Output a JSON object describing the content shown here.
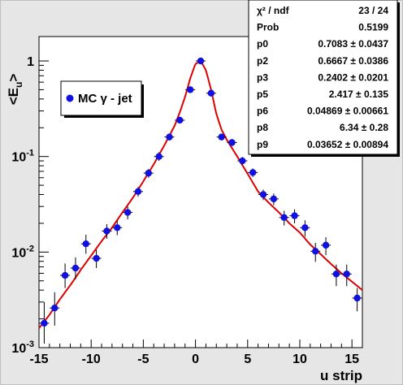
{
  "chart_data": {
    "type": "scatter",
    "xlabel": "u strip",
    "ylabel": "<E_u>",
    "xlim": [
      -15,
      16
    ],
    "ylim": [
      0.001,
      1.8
    ],
    "y_scale": "log",
    "x_ticks": [
      -15,
      -10,
      -5,
      0,
      5,
      10,
      15
    ],
    "y_ticks": [
      {
        "value": 0.001,
        "base": "10",
        "exp": "-3"
      },
      {
        "value": 0.01,
        "base": "10",
        "exp": "-2"
      },
      {
        "value": 0.1,
        "base": "10",
        "exp": "-1"
      },
      {
        "value": 1,
        "base": "1",
        "exp": ""
      }
    ],
    "grid": false,
    "legend": {
      "label": "MC γ - jet",
      "marker_color": "#1010e0",
      "placement": "upper-left"
    },
    "series": [
      {
        "name": "MC γ - jet",
        "marker_color": "#1010e0",
        "x": [
          -14.5,
          -13.5,
          -12.5,
          -11.5,
          -10.5,
          -9.5,
          -8.5,
          -7.5,
          -6.5,
          -5.5,
          -4.5,
          -3.5,
          -2.5,
          -1.5,
          -0.5,
          0.5,
          1.5,
          2.5,
          3.5,
          4.5,
          5.5,
          6.5,
          7.5,
          8.5,
          9.5,
          10.5,
          11.5,
          12.5,
          13.5,
          14.5,
          15.5
        ],
        "y": [
          0.0018,
          0.0026,
          0.0057,
          0.0068,
          0.0122,
          0.0086,
          0.0166,
          0.018,
          0.026,
          0.043,
          0.067,
          0.1,
          0.16,
          0.24,
          0.5,
          1.0,
          0.46,
          0.16,
          0.14,
          0.09,
          0.068,
          0.04,
          0.036,
          0.023,
          0.024,
          0.018,
          0.0102,
          0.0118,
          0.0059,
          0.0059,
          0.0033
        ],
        "yerr_lo": [
          0.0007,
          0.0009,
          0.0015,
          0.0016,
          0.0026,
          0.0018,
          0.0028,
          0.003,
          0.004,
          0.005,
          0.007,
          0.01,
          0.013,
          0.018,
          0.03,
          0.05,
          0.03,
          0.012,
          0.011,
          0.008,
          0.007,
          0.005,
          0.005,
          0.004,
          0.004,
          0.0035,
          0.0023,
          0.0025,
          0.0015,
          0.0015,
          0.0009
        ],
        "yerr_hi": [
          0.0012,
          0.0012,
          0.0019,
          0.002,
          0.003,
          0.002,
          0.003,
          0.0033,
          0.004,
          0.005,
          0.007,
          0.011,
          0.014,
          0.02,
          0.03,
          0.05,
          0.03,
          0.013,
          0.012,
          0.009,
          0.007,
          0.005,
          0.005,
          0.004,
          0.004,
          0.0035,
          0.0023,
          0.0025,
          0.0015,
          0.0015,
          0.0009
        ]
      }
    ],
    "fit_curve": {
      "color": "#dd0000",
      "anchors_x": [
        -15,
        -14,
        -13,
        -12,
        -11,
        -10,
        -9,
        -8,
        -7,
        -6,
        -5,
        -4,
        -3,
        -2,
        -1.5,
        -1,
        -0.5,
        0,
        0.5,
        1,
        1.5,
        2,
        2.5,
        3,
        4,
        5,
        6,
        7,
        8,
        9,
        10,
        11,
        12,
        13,
        14,
        15,
        16
      ],
      "anchors_y": [
        0.0016,
        0.0022,
        0.0032,
        0.0045,
        0.0065,
        0.0092,
        0.013,
        0.018,
        0.026,
        0.037,
        0.055,
        0.083,
        0.13,
        0.21,
        0.29,
        0.42,
        0.66,
        0.93,
        1.0,
        0.8,
        0.5,
        0.28,
        0.19,
        0.15,
        0.1,
        0.066,
        0.043,
        0.033,
        0.026,
        0.02,
        0.016,
        0.012,
        0.0095,
        0.0075,
        0.006,
        0.0049,
        0.004
      ]
    },
    "stats_box": {
      "rows": [
        {
          "label": "χ² / ndf",
          "value": "23 / 24"
        },
        {
          "label": "Prob",
          "value": "0.5199"
        },
        {
          "label": "p0",
          "value": "0.7083 ± 0.0437"
        },
        {
          "label": "p2",
          "value": "0.6667 ± 0.0386"
        },
        {
          "label": "p3",
          "value": "0.2402 ± 0.0201"
        },
        {
          "label": "p5",
          "value": "2.417 ± 0.135"
        },
        {
          "label": "p6",
          "value": "0.04869 ± 0.00661"
        },
        {
          "label": "p8",
          "value": "6.34 ± 0.28"
        },
        {
          "label": "p9",
          "value": "0.03652 ± 0.00894"
        }
      ]
    }
  }
}
